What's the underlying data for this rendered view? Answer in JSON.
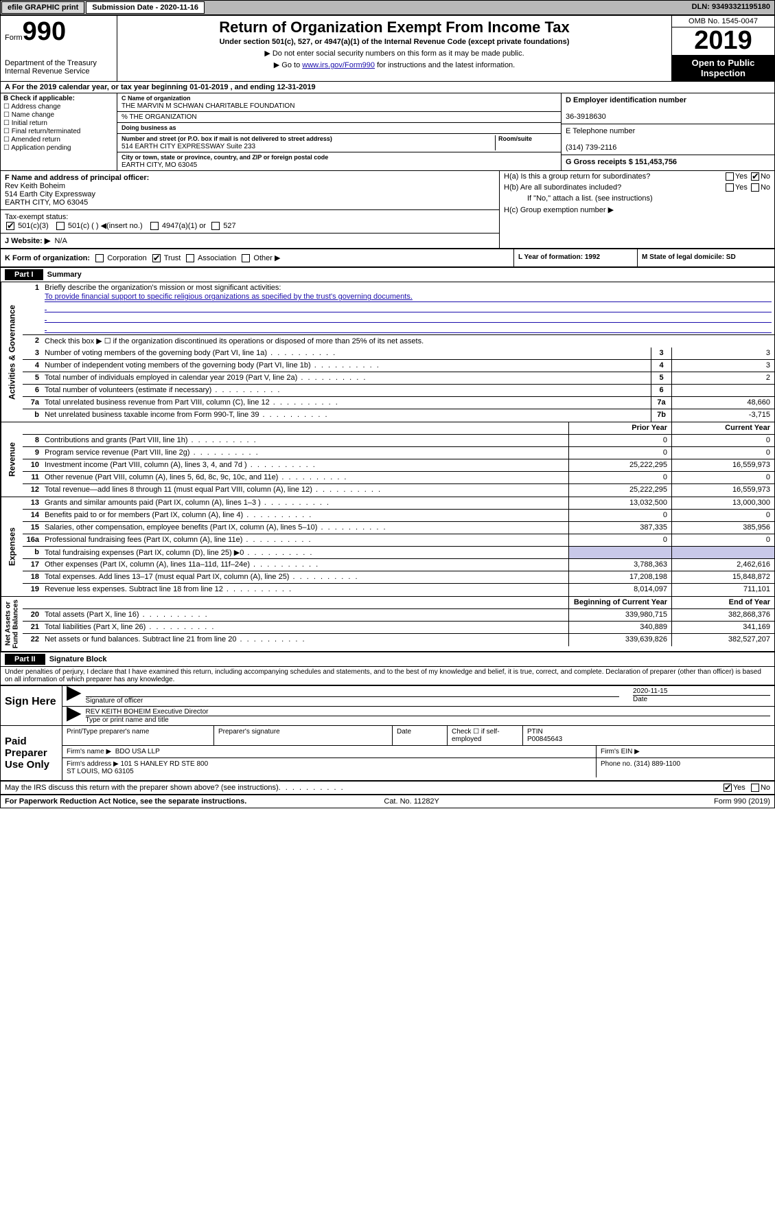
{
  "topbar": {
    "efile": "efile GRAPHIC print",
    "sub_label": "Submission Date - 2020-11-16",
    "dln": "DLN: 93493321195180"
  },
  "header": {
    "form_small": "Form",
    "form_big": "990",
    "dept": "Department of the Treasury\nInternal Revenue Service",
    "title": "Return of Organization Exempt From Income Tax",
    "sub": "Under section 501(c), 527, or 4947(a)(1) of the Internal Revenue Code (except private foundations)",
    "hint1": "▶ Do not enter social security numbers on this form as it may be made public.",
    "hint2_pre": "▶ Go to ",
    "hint2_link": "www.irs.gov/Form990",
    "hint2_post": " for instructions and the latest information.",
    "omb": "OMB No. 1545-0047",
    "year": "2019",
    "openpub": "Open to Public Inspection"
  },
  "rowA": "A For the 2019 calendar year, or tax year beginning 01-01-2019   , and ending 12-31-2019",
  "boxB": {
    "title": "B Check if applicable:",
    "items": [
      "Address change",
      "Name change",
      "Initial return",
      "Final return/terminated",
      "Amended return",
      "Application pending"
    ]
  },
  "boxC": {
    "name_lbl": "C Name of organization",
    "name": "THE MARVIN M SCHWAN CHARITABLE FOUNDATION",
    "care_lbl": "% THE ORGANIZATION",
    "dba_lbl": "Doing business as",
    "addr_lbl": "Number and street (or P.O. box if mail is not delivered to street address)",
    "room_lbl": "Room/suite",
    "addr": "514 EARTH CITY EXPRESSWAY Suite 233",
    "city_lbl": "City or town, state or province, country, and ZIP or foreign postal code",
    "city": "EARTH CITY, MO  63045"
  },
  "boxD": {
    "lbl": "D Employer identification number",
    "val": "36-3918630"
  },
  "boxE": {
    "lbl": "E Telephone number",
    "val": "(314) 739-2116"
  },
  "boxG": {
    "lbl": "G Gross receipts $ 151,453,756"
  },
  "boxF": {
    "lbl": "F  Name and address of principal officer:",
    "name": "Rev Keith Boheim",
    "addr1": "514 Earth City Expressway",
    "addr2": "EARTH CITY, MO  63045"
  },
  "boxH": {
    "ha": "H(a)  Is this a group return for subordinates?",
    "hb": "H(b)  Are all subordinates included?",
    "hb_note": "If \"No,\" attach a list. (see instructions)",
    "hc": "H(c)  Group exemption number ▶",
    "yes": "Yes",
    "no": "No"
  },
  "taxExempt": {
    "lbl": "Tax-exempt status:",
    "opts": [
      "501(c)(3)",
      "501(c) (  ) ◀(insert no.)",
      "4947(a)(1) or",
      "527"
    ]
  },
  "boxJ": {
    "lbl": "J  Website: ▶",
    "val": "N/A"
  },
  "boxK": {
    "lbl": "K Form of organization:",
    "opts": [
      "Corporation",
      "Trust",
      "Association",
      "Other ▶"
    ]
  },
  "boxL": "L Year of formation: 1992",
  "boxM": "M State of legal domicile: SD",
  "partI": {
    "hdr": "Part I",
    "title": "Summary",
    "sideA": "Activities & Governance",
    "sideR": "Revenue",
    "sideE": "Expenses",
    "sideN": "Net Assets or\nFund Balances",
    "l1": "Briefly describe the organization's mission or most significant activities:",
    "mission": "To provide financial support to specific religious organizations as specified by the trust's governing documents.",
    "l2": "Check this box ▶ ☐  if the organization discontinued its operations or disposed of more than 25% of its net assets.",
    "lines_gov": [
      {
        "n": "3",
        "d": "Number of voting members of the governing body (Part VI, line 1a)",
        "c": "3",
        "v": "3"
      },
      {
        "n": "4",
        "d": "Number of independent voting members of the governing body (Part VI, line 1b)",
        "c": "4",
        "v": "3"
      },
      {
        "n": "5",
        "d": "Total number of individuals employed in calendar year 2019 (Part V, line 2a)",
        "c": "5",
        "v": "2"
      },
      {
        "n": "6",
        "d": "Total number of volunteers (estimate if necessary)",
        "c": "6",
        "v": ""
      },
      {
        "n": "7a",
        "d": "Total unrelated business revenue from Part VIII, column (C), line 12",
        "c": "7a",
        "v": "48,660"
      },
      {
        "n": "b",
        "d": "Net unrelated business taxable income from Form 990-T, line 39",
        "c": "7b",
        "v": "-3,715"
      }
    ],
    "pyh": "Prior Year",
    "cyh": "Current Year",
    "lines_rev": [
      {
        "n": "8",
        "d": "Contributions and grants (Part VIII, line 1h)",
        "py": "0",
        "cy": "0"
      },
      {
        "n": "9",
        "d": "Program service revenue (Part VIII, line 2g)",
        "py": "0",
        "cy": "0"
      },
      {
        "n": "10",
        "d": "Investment income (Part VIII, column (A), lines 3, 4, and 7d )",
        "py": "25,222,295",
        "cy": "16,559,973"
      },
      {
        "n": "11",
        "d": "Other revenue (Part VIII, column (A), lines 5, 6d, 8c, 9c, 10c, and 11e)",
        "py": "0",
        "cy": "0"
      },
      {
        "n": "12",
        "d": "Total revenue—add lines 8 through 11 (must equal Part VIII, column (A), line 12)",
        "py": "25,222,295",
        "cy": "16,559,973"
      }
    ],
    "lines_exp": [
      {
        "n": "13",
        "d": "Grants and similar amounts paid (Part IX, column (A), lines 1–3 )",
        "py": "13,032,500",
        "cy": "13,000,300"
      },
      {
        "n": "14",
        "d": "Benefits paid to or for members (Part IX, column (A), line 4)",
        "py": "0",
        "cy": "0"
      },
      {
        "n": "15",
        "d": "Salaries, other compensation, employee benefits (Part IX, column (A), lines 5–10)",
        "py": "387,335",
        "cy": "385,956"
      },
      {
        "n": "16a",
        "d": "Professional fundraising fees (Part IX, column (A), line 11e)",
        "py": "0",
        "cy": "0"
      },
      {
        "n": "b",
        "d": "Total fundraising expenses (Part IX, column (D), line 25) ▶0",
        "py": "",
        "cy": "",
        "shaded": true
      },
      {
        "n": "17",
        "d": "Other expenses (Part IX, column (A), lines 11a–11d, 11f–24e)",
        "py": "3,788,363",
        "cy": "2,462,616"
      },
      {
        "n": "18",
        "d": "Total expenses. Add lines 13–17 (must equal Part IX, column (A), line 25)",
        "py": "17,208,198",
        "cy": "15,848,872"
      },
      {
        "n": "19",
        "d": "Revenue less expenses. Subtract line 18 from line 12",
        "py": "8,014,097",
        "cy": "711,101"
      }
    ],
    "boyh": "Beginning of Current Year",
    "eoyh": "End of Year",
    "lines_net": [
      {
        "n": "20",
        "d": "Total assets (Part X, line 16)",
        "py": "339,980,715",
        "cy": "382,868,376"
      },
      {
        "n": "21",
        "d": "Total liabilities (Part X, line 26)",
        "py": "340,889",
        "cy": "341,169"
      },
      {
        "n": "22",
        "d": "Net assets or fund balances. Subtract line 21 from line 20",
        "py": "339,639,826",
        "cy": "382,527,207"
      }
    ]
  },
  "partII": {
    "hdr": "Part II",
    "title": "Signature Block",
    "perjury": "Under penalties of perjury, I declare that I have examined this return, including accompanying schedules and statements, and to the best of my knowledge and belief, it is true, correct, and complete. Declaration of preparer (other than officer) is based on all information of which preparer has any knowledge.",
    "sign_here": "Sign Here",
    "sig_officer": "Signature of officer",
    "date": "2020-11-15",
    "date_lbl": "Date",
    "officer_name": "REV KEITH BOHEIM  Executive Director",
    "type_name": "Type or print name and title",
    "paid": "Paid Preparer Use Only",
    "prep_name_lbl": "Print/Type preparer's name",
    "prep_sig_lbl": "Preparer's signature",
    "date2_lbl": "Date",
    "selfemp": "Check ☐ if self-employed",
    "ptin_lbl": "PTIN",
    "ptin": "P00845643",
    "firm_name_lbl": "Firm's name    ▶",
    "firm_name": "BDO USA LLP",
    "firm_ein_lbl": "Firm's EIN ▶",
    "firm_addr_lbl": "Firm's address ▶",
    "firm_addr": "101 S HANLEY RD STE 800\nST LOUIS, MO  63105",
    "phone_lbl": "Phone no. (314) 889-1100",
    "discuss": "May the IRS discuss this return with the preparer shown above? (see instructions)",
    "paperwork": "For Paperwork Reduction Act Notice, see the separate instructions.",
    "cat": "Cat. No. 11282Y",
    "formfoot": "Form 990 (2019)"
  }
}
